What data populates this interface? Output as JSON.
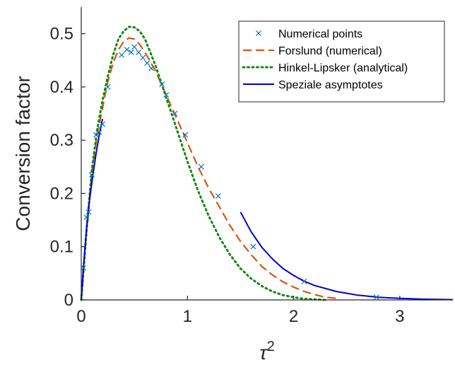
{
  "chart_data": {
    "type": "line",
    "title": "",
    "xlabel": "τ",
    "xlabel_superscript": "2",
    "ylabel": "Conversion factor",
    "xlim": [
      0,
      3.5
    ],
    "ylim": [
      0,
      0.55
    ],
    "xticks": [
      0,
      1,
      2,
      3
    ],
    "xtick_labels": [
      "0",
      "1",
      "2",
      "3"
    ],
    "yticks": [
      0,
      0.1,
      0.2,
      0.3,
      0.4,
      0.5
    ],
    "ytick_labels": [
      "0",
      "0.1",
      "0.2",
      "0.3",
      "0.4",
      "0.5"
    ],
    "grid": false,
    "legend_position": "top-right",
    "series": [
      {
        "name": "Numerical points",
        "style": "marker-x",
        "color": "#0072BD",
        "x": [
          0.02,
          0.05,
          0.07,
          0.1,
          0.14,
          0.17,
          0.2,
          0.25,
          0.38,
          0.43,
          0.47,
          0.5,
          0.54,
          0.58,
          0.62,
          0.66,
          0.76,
          0.8,
          0.88,
          0.98,
          1.13,
          1.29,
          1.62,
          2.1,
          2.78
        ],
        "y": [
          0.06,
          0.155,
          0.165,
          0.235,
          0.31,
          0.315,
          0.33,
          0.4,
          0.46,
          0.47,
          0.465,
          0.475,
          0.465,
          0.455,
          0.445,
          0.435,
          0.405,
          0.385,
          0.35,
          0.31,
          0.25,
          0.195,
          0.1,
          0.035,
          0.005
        ]
      },
      {
        "name": "Forslund (numerical)",
        "style": "dashed",
        "color": "#D95319",
        "x": [
          0,
          0.05,
          0.1,
          0.15,
          0.2,
          0.25,
          0.3,
          0.35,
          0.4,
          0.45,
          0.5,
          0.55,
          0.6,
          0.7,
          0.8,
          0.9,
          1.0,
          1.1,
          1.2,
          1.3,
          1.4,
          1.5,
          1.6,
          1.7,
          1.8,
          1.9,
          2.0,
          2.1,
          2.2,
          2.3,
          2.4
        ],
        "y": [
          0,
          0.13,
          0.24,
          0.31,
          0.36,
          0.41,
          0.445,
          0.47,
          0.485,
          0.492,
          0.49,
          0.48,
          0.465,
          0.43,
          0.385,
          0.34,
          0.295,
          0.25,
          0.21,
          0.175,
          0.14,
          0.11,
          0.085,
          0.063,
          0.047,
          0.034,
          0.024,
          0.016,
          0.01,
          0.005,
          0.003
        ]
      },
      {
        "name": "Hinkel-Lipsker (analytical)",
        "style": "dotted",
        "color": "#118A11",
        "x": [
          0,
          0.05,
          0.1,
          0.15,
          0.2,
          0.25,
          0.3,
          0.35,
          0.4,
          0.45,
          0.5,
          0.55,
          0.6,
          0.7,
          0.8,
          0.9,
          1.0,
          1.1,
          1.2,
          1.3,
          1.4,
          1.5,
          1.6,
          1.7,
          1.8,
          1.9,
          2.0,
          2.1,
          2.2,
          2.3
        ],
        "y": [
          0,
          0.13,
          0.245,
          0.32,
          0.375,
          0.42,
          0.46,
          0.49,
          0.505,
          0.513,
          0.512,
          0.505,
          0.49,
          0.44,
          0.38,
          0.32,
          0.26,
          0.205,
          0.158,
          0.118,
          0.085,
          0.059,
          0.04,
          0.026,
          0.016,
          0.009,
          0.005,
          0.002,
          0.001,
          0
        ]
      },
      {
        "name": "Speziale asymptotes",
        "style": "solid",
        "color": "#0000CC",
        "segments": [
          {
            "x": [
              0,
              0.02,
              0.05,
              0.08,
              0.11,
              0.14,
              0.17,
              0.2
            ],
            "y": [
              0,
              0.06,
              0.135,
              0.19,
              0.235,
              0.275,
              0.31,
              0.34
            ]
          },
          {
            "x": [
              1.5,
              1.6,
              1.7,
              1.8,
              1.9,
              2.0,
              2.1,
              2.2,
              2.4,
              2.6,
              2.8,
              3.0,
              3.2,
              3.5
            ],
            "y": [
              0.165,
              0.128,
              0.099,
              0.077,
              0.059,
              0.046,
              0.035,
              0.027,
              0.016,
              0.009,
              0.005,
              0.003,
              0.0015,
              0.0005
            ]
          }
        ]
      }
    ]
  }
}
